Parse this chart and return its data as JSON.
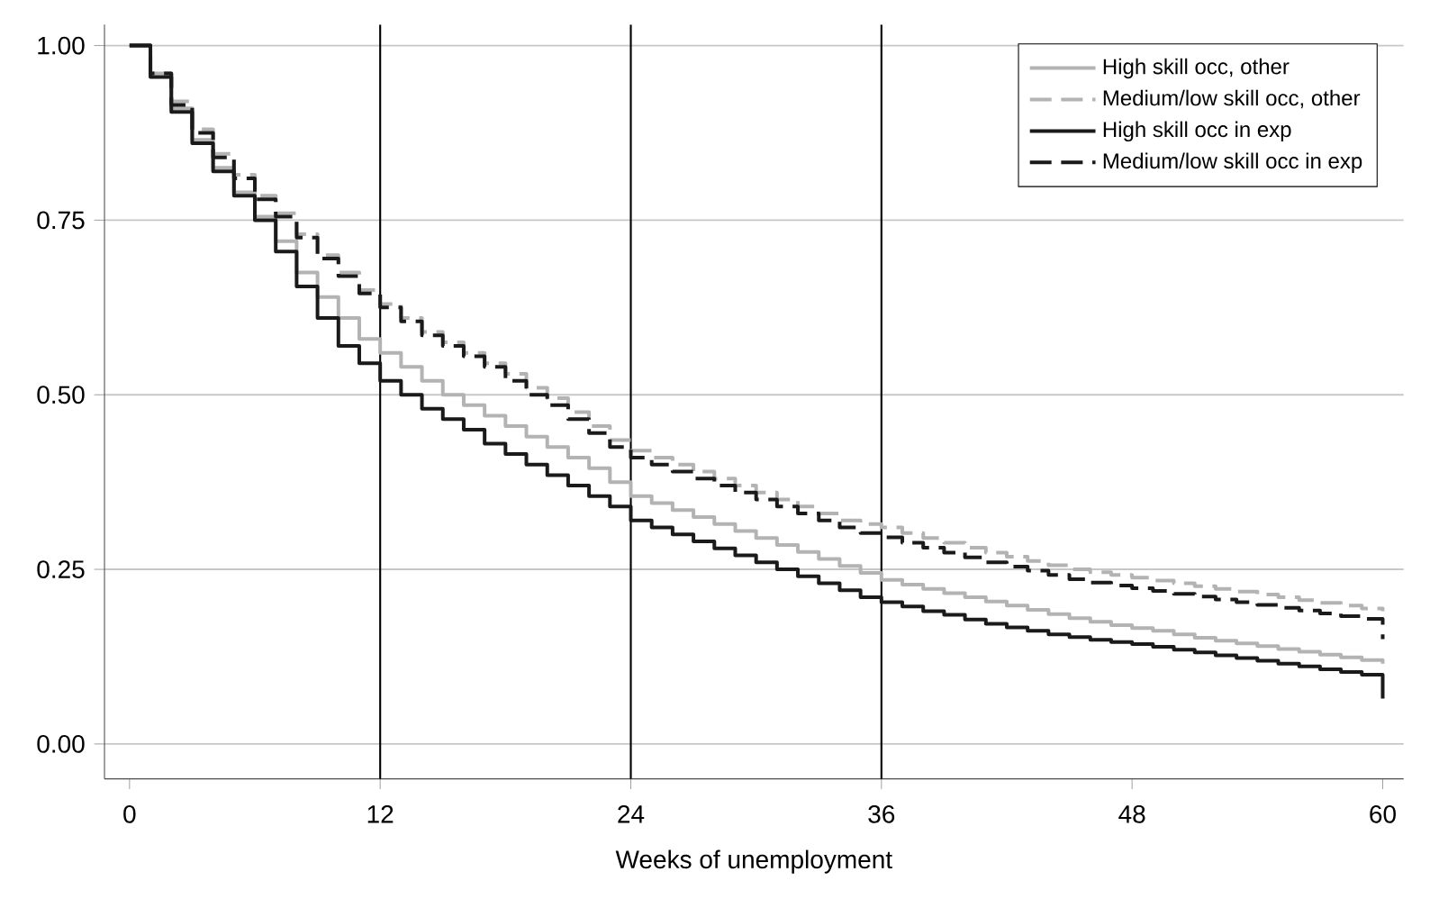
{
  "chart_data": {
    "type": "step",
    "xlabel": "Weeks of unemployment",
    "x": [
      0,
      1,
      2,
      3,
      4,
      5,
      6,
      7,
      8,
      9,
      10,
      11,
      12,
      13,
      14,
      15,
      16,
      17,
      18,
      19,
      20,
      21,
      22,
      23,
      24,
      25,
      26,
      27,
      28,
      29,
      30,
      31,
      32,
      33,
      34,
      35,
      36,
      37,
      38,
      39,
      40,
      41,
      42,
      43,
      44,
      45,
      46,
      47,
      48,
      49,
      50,
      51,
      52,
      53,
      54,
      55,
      56,
      57,
      58,
      59,
      60
    ],
    "series": [
      {
        "name": "High skill occ, other",
        "color": "#b3b3b3",
        "line_style": "solid",
        "values": [
          1.0,
          0.96,
          0.91,
          0.865,
          0.825,
          0.79,
          0.755,
          0.72,
          0.675,
          0.64,
          0.61,
          0.58,
          0.56,
          0.54,
          0.52,
          0.5,
          0.485,
          0.47,
          0.455,
          0.44,
          0.425,
          0.41,
          0.395,
          0.375,
          0.355,
          0.345,
          0.335,
          0.325,
          0.315,
          0.305,
          0.295,
          0.285,
          0.275,
          0.265,
          0.255,
          0.245,
          0.235,
          0.228,
          0.222,
          0.216,
          0.21,
          0.204,
          0.198,
          0.192,
          0.186,
          0.18,
          0.175,
          0.17,
          0.166,
          0.162,
          0.157,
          0.152,
          0.148,
          0.144,
          0.14,
          0.136,
          0.132,
          0.128,
          0.124,
          0.12,
          0.115
        ]
      },
      {
        "name": "Medium/low skill occ, other",
        "color": "#b3b3b3",
        "line_style": "dashed",
        "values": [
          1.0,
          0.96,
          0.92,
          0.88,
          0.845,
          0.815,
          0.785,
          0.76,
          0.73,
          0.7,
          0.675,
          0.65,
          0.63,
          0.61,
          0.59,
          0.575,
          0.56,
          0.545,
          0.53,
          0.51,
          0.495,
          0.475,
          0.455,
          0.435,
          0.42,
          0.41,
          0.4,
          0.39,
          0.38,
          0.37,
          0.36,
          0.35,
          0.34,
          0.33,
          0.32,
          0.315,
          0.31,
          0.302,
          0.295,
          0.288,
          0.281,
          0.274,
          0.268,
          0.262,
          0.256,
          0.25,
          0.246,
          0.242,
          0.238,
          0.234,
          0.23,
          0.226,
          0.222,
          0.218,
          0.214,
          0.21,
          0.206,
          0.202,
          0.198,
          0.194,
          0.19
        ]
      },
      {
        "name": "High skill occ in exp",
        "color": "#1a1a1a",
        "line_style": "solid",
        "values": [
          1.0,
          0.955,
          0.905,
          0.86,
          0.82,
          0.785,
          0.75,
          0.705,
          0.655,
          0.61,
          0.57,
          0.545,
          0.52,
          0.5,
          0.48,
          0.465,
          0.45,
          0.43,
          0.415,
          0.4,
          0.385,
          0.37,
          0.355,
          0.34,
          0.32,
          0.31,
          0.3,
          0.29,
          0.28,
          0.27,
          0.26,
          0.25,
          0.24,
          0.23,
          0.22,
          0.21,
          0.203,
          0.197,
          0.19,
          0.185,
          0.178,
          0.172,
          0.167,
          0.162,
          0.157,
          0.153,
          0.149,
          0.146,
          0.143,
          0.139,
          0.135,
          0.131,
          0.127,
          0.123,
          0.119,
          0.115,
          0.111,
          0.107,
          0.103,
          0.099,
          0.065
        ]
      },
      {
        "name": "Medium/low skill occ in exp",
        "color": "#1a1a1a",
        "line_style": "dashed",
        "values": [
          1.0,
          0.96,
          0.915,
          0.875,
          0.84,
          0.81,
          0.78,
          0.755,
          0.725,
          0.695,
          0.67,
          0.645,
          0.625,
          0.605,
          0.585,
          0.57,
          0.555,
          0.54,
          0.52,
          0.5,
          0.485,
          0.465,
          0.445,
          0.425,
          0.41,
          0.4,
          0.39,
          0.38,
          0.37,
          0.36,
          0.35,
          0.34,
          0.33,
          0.32,
          0.31,
          0.302,
          0.296,
          0.288,
          0.281,
          0.274,
          0.267,
          0.26,
          0.254,
          0.248,
          0.242,
          0.236,
          0.231,
          0.227,
          0.223,
          0.219,
          0.215,
          0.211,
          0.207,
          0.203,
          0.199,
          0.195,
          0.191,
          0.187,
          0.183,
          0.179,
          0.15
        ]
      }
    ],
    "xlim": [
      -1.2,
      61
    ],
    "xticks": [
      0,
      12,
      24,
      36,
      48,
      60
    ],
    "ylim": [
      -0.05,
      1.03
    ],
    "yticks": [
      {
        "value": 0,
        "label": "0.00"
      },
      {
        "value": 0.25,
        "label": "0.25"
      },
      {
        "value": 0.5,
        "label": "0.50"
      },
      {
        "value": 0.75,
        "label": "0.75"
      },
      {
        "value": 1,
        "label": "1.00"
      }
    ],
    "ref_lines": [
      {
        "axis": "x",
        "value": 12,
        "color": "#000000"
      },
      {
        "axis": "x",
        "value": 24,
        "color": "#000000"
      },
      {
        "axis": "x",
        "value": 36,
        "color": "#000000"
      }
    ],
    "grid": "y",
    "legend": "top right",
    "marker": "none"
  }
}
